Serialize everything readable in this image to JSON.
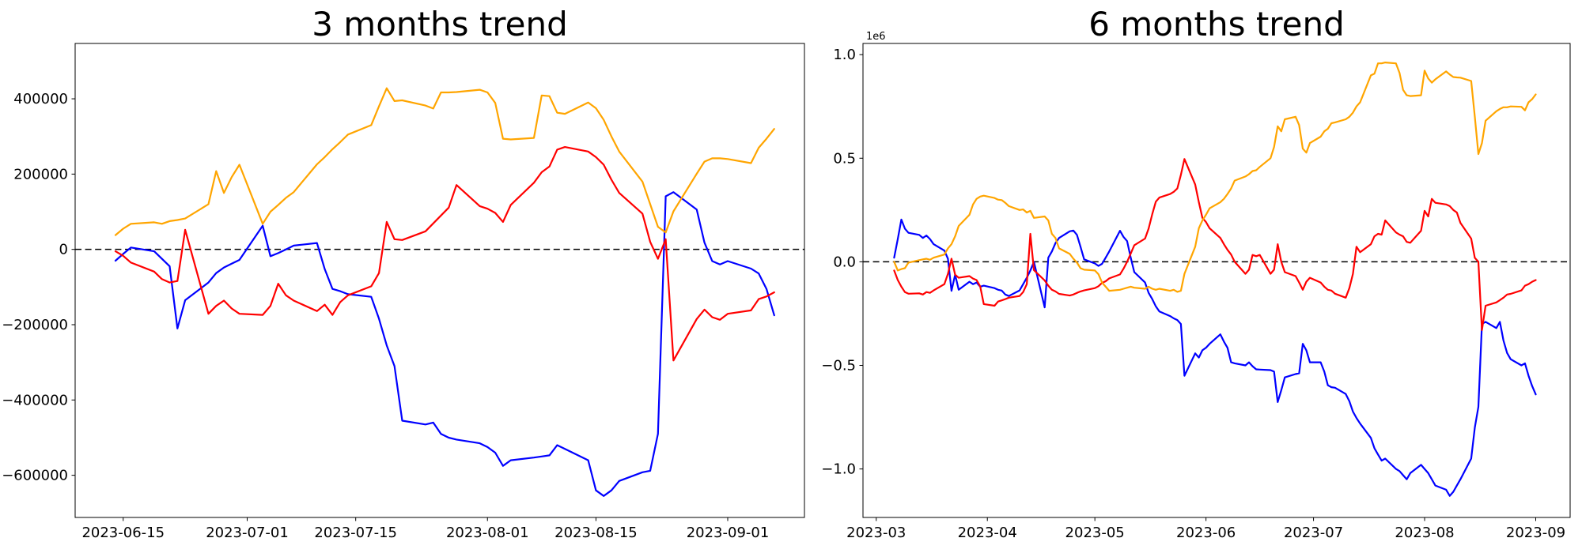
{
  "figure": {
    "background": "#ffffff",
    "axes_color": "#000000"
  },
  "chart_data": {
    "charts": [
      {
        "title": "3 months trend",
        "type": "line",
        "grid": false,
        "legend": null,
        "zero_line": {
          "value": 0,
          "style": "dashed",
          "color": "#000000"
        },
        "xlabel": "",
        "ylabel": "",
        "t_unit": "days since 2023-06-15 (weekday samples)",
        "xlim": [
          -6.2,
          87.9
        ],
        "ylim": [
          -712000,
          547000
        ],
        "x_ticks": {
          "pos": [
            0,
            16,
            30,
            47,
            61,
            78
          ],
          "labels": [
            "2023-06-15",
            "2023-07-01",
            "2023-07-15",
            "2023-08-01",
            "2023-08-15",
            "2023-09-01"
          ]
        },
        "y_ticks": {
          "pos": [
            400000,
            200000,
            0,
            -200000,
            -400000,
            -600000
          ],
          "labels": [
            "400000",
            "200000",
            "0",
            "−200000",
            "−400000",
            "−600000"
          ]
        },
        "offset_label": "",
        "t": [
          -1,
          0,
          1,
          4,
          5,
          6,
          7,
          8,
          11,
          12,
          13,
          14,
          15,
          18,
          19,
          20,
          21,
          22,
          25,
          26,
          27,
          28,
          29,
          32,
          33,
          34,
          35,
          36,
          39,
          40,
          41,
          42,
          43,
          46,
          47,
          48,
          49,
          50,
          53,
          54,
          55,
          56,
          57,
          60,
          61,
          62,
          63,
          64,
          67,
          68,
          69,
          70,
          71,
          74,
          75,
          76,
          77,
          78,
          81,
          82,
          83,
          84
        ],
        "series": [
          {
            "name": "blue-series",
            "color": "#0000ff",
            "values": [
              -30000,
              -12000,
              5000,
              -5000,
              -25000,
              -45000,
              -210000,
              -135000,
              -88000,
              -63000,
              -48000,
              -38000,
              -28000,
              63000,
              -18000,
              -10000,
              0,
              10000,
              17000,
              -52000,
              -105000,
              -111000,
              -119000,
              -126000,
              -184000,
              -255000,
              -310000,
              -455000,
              -465000,
              -460000,
              -490000,
              -500000,
              -505000,
              -515000,
              -525000,
              -540000,
              -575000,
              -560000,
              -553000,
              -550000,
              -547000,
              -520000,
              -530000,
              -560000,
              -640000,
              -655000,
              -640000,
              -615000,
              -592000,
              -588000,
              -490000,
              141000,
              152000,
              106000,
              18000,
              -31000,
              -40000,
              -31000,
              -51000,
              -64000,
              -105000,
              -175000
            ]
          },
          {
            "name": "red-series",
            "color": "#ff0000",
            "values": [
              -5000,
              -17000,
              -35000,
              -59000,
              -79000,
              -88000,
              -84000,
              52000,
              -171000,
              -150000,
              -136000,
              -157000,
              -171000,
              -174000,
              -150000,
              -91000,
              -122000,
              -136000,
              -164000,
              -147000,
              -174000,
              -140000,
              -122000,
              -98000,
              -63000,
              73000,
              27000,
              25000,
              48000,
              69000,
              90000,
              111000,
              171000,
              115000,
              108000,
              97000,
              73000,
              118000,
              177000,
              205000,
              220000,
              265000,
              272000,
              260000,
              245000,
              225000,
              185000,
              150000,
              95000,
              20000,
              -25000,
              27000,
              -295000,
              -185000,
              -160000,
              -180000,
              -187000,
              -171000,
              -162000,
              -132000,
              -125000,
              -114000
            ]
          },
          {
            "name": "orange-series",
            "color": "#ffa500",
            "values": [
              38000,
              55000,
              68000,
              72000,
              68000,
              75000,
              78000,
              82000,
              120000,
              208000,
              150000,
              192000,
              225000,
              68000,
              100000,
              118000,
              137000,
              152000,
              226000,
              245000,
              266000,
              285000,
              305000,
              330000,
              380000,
              428000,
              394000,
              396000,
              382000,
              374000,
              417000,
              417000,
              418000,
              424000,
              417000,
              389000,
              294000,
              292000,
              296000,
              409000,
              407000,
              363000,
              360000,
              390000,
              375000,
              344000,
              300000,
              260000,
              180000,
              120000,
              60000,
              45000,
              101000,
              201000,
              233000,
              242000,
              242000,
              240000,
              229000,
              270000,
              294000,
              320000
            ]
          }
        ]
      },
      {
        "title": "6 months trend",
        "type": "line",
        "grid": false,
        "legend": null,
        "zero_line": {
          "value": 0,
          "style": "dashed",
          "color": "#000000"
        },
        "xlabel": "",
        "ylabel": "",
        "t_unit": "days since 2023-03-01 (weekday samples)",
        "value_unit": "1e6",
        "xlim": [
          -3.7,
          193.6
        ],
        "ylim": [
          -1.234,
          1.054
        ],
        "x_ticks": {
          "pos": [
            0,
            31,
            61,
            92,
            122,
            153,
            184
          ],
          "labels": [
            "2023-03",
            "2023-04",
            "2023-05",
            "2023-06",
            "2023-07",
            "2023-08",
            "2023-09"
          ]
        },
        "y_ticks": {
          "pos": [
            1.0,
            0.5,
            0.0,
            -0.5,
            -1.0
          ],
          "labels": [
            "1.0",
            "0.5",
            "0.0",
            "−0.5",
            "−1.0"
          ]
        },
        "offset_label": "1e6",
        "t": [
          5,
          6,
          7,
          8,
          9,
          12,
          13,
          14,
          15,
          16,
          19,
          20,
          21,
          22,
          23,
          26,
          27,
          28,
          29,
          30,
          33,
          34,
          35,
          36,
          37,
          40,
          41,
          42,
          43,
          44,
          47,
          48,
          49,
          50,
          51,
          54,
          55,
          56,
          57,
          58,
          61,
          62,
          63,
          64,
          65,
          68,
          69,
          70,
          71,
          72,
          75,
          76,
          77,
          78,
          79,
          82,
          83,
          84,
          85,
          86,
          89,
          90,
          91,
          92,
          93,
          96,
          97,
          98,
          99,
          100,
          103,
          104,
          105,
          106,
          107,
          110,
          111,
          112,
          113,
          114,
          117,
          118,
          119,
          120,
          121,
          124,
          125,
          126,
          127,
          128,
          131,
          132,
          133,
          134,
          135,
          138,
          139,
          140,
          141,
          142,
          145,
          146,
          147,
          148,
          149,
          152,
          153,
          154,
          155,
          156,
          159,
          160,
          161,
          162,
          163,
          166,
          167,
          168,
          169,
          170,
          173,
          174,
          175,
          176,
          177,
          180,
          181,
          182,
          183,
          184
        ],
        "series": [
          {
            "name": "blue-series",
            "color": "#0000ff",
            "values": [
              0.02,
              0.11,
              0.204,
              0.16,
              0.14,
              0.13,
              0.115,
              0.127,
              0.11,
              0.085,
              0.054,
              0.015,
              -0.14,
              -0.062,
              -0.135,
              -0.096,
              -0.108,
              -0.1,
              -0.12,
              -0.115,
              -0.127,
              -0.135,
              -0.139,
              -0.158,
              -0.165,
              -0.138,
              -0.108,
              -0.077,
              -0.042,
              0.0,
              -0.22,
              0.02,
              0.05,
              0.09,
              0.115,
              0.147,
              0.151,
              0.13,
              0.073,
              0.012,
              -0.008,
              -0.02,
              -0.01,
              0.02,
              0.05,
              0.15,
              0.12,
              0.1,
              0.02,
              -0.05,
              -0.1,
              -0.15,
              -0.18,
              -0.215,
              -0.24,
              -0.262,
              -0.273,
              -0.281,
              -0.3,
              -0.55,
              -0.442,
              -0.462,
              -0.427,
              -0.415,
              -0.396,
              -0.35,
              -0.385,
              -0.415,
              -0.485,
              -0.49,
              -0.5,
              -0.485,
              -0.504,
              -0.519,
              -0.52,
              -0.523,
              -0.53,
              -0.677,
              -0.62,
              -0.558,
              -0.542,
              -0.538,
              -0.396,
              -0.427,
              -0.485,
              -0.485,
              -0.53,
              -0.596,
              -0.605,
              -0.608,
              -0.638,
              -0.673,
              -0.723,
              -0.754,
              -0.781,
              -0.85,
              -0.9,
              -0.93,
              -0.96,
              -0.95,
              -1.0,
              -1.01,
              -1.03,
              -1.05,
              -1.02,
              -0.98,
              -1.0,
              -1.02,
              -1.05,
              -1.08,
              -1.1,
              -1.13,
              -1.11,
              -1.08,
              -1.05,
              -0.95,
              -0.8,
              -0.7,
              -0.3,
              -0.29,
              -0.32,
              -0.29,
              -0.38,
              -0.44,
              -0.47,
              -0.5,
              -0.49,
              -0.55,
              -0.6,
              -0.64
            ]
          },
          {
            "name": "red-series",
            "color": "#ff0000",
            "values": [
              -0.042,
              -0.088,
              -0.12,
              -0.146,
              -0.154,
              -0.152,
              -0.158,
              -0.146,
              -0.15,
              -0.138,
              -0.108,
              -0.058,
              0.015,
              -0.062,
              -0.077,
              -0.069,
              -0.081,
              -0.088,
              -0.119,
              -0.204,
              -0.212,
              -0.192,
              -0.186,
              -0.18,
              -0.173,
              -0.165,
              -0.146,
              -0.108,
              0.135,
              -0.04,
              -0.09,
              -0.115,
              -0.135,
              -0.143,
              -0.155,
              -0.163,
              -0.158,
              -0.15,
              -0.143,
              -0.138,
              -0.127,
              -0.118,
              -0.102,
              -0.094,
              -0.08,
              -0.061,
              -0.033,
              0.0,
              0.04,
              0.08,
              0.112,
              0.16,
              0.23,
              0.29,
              0.31,
              0.327,
              0.338,
              0.354,
              0.42,
              0.496,
              0.373,
              0.288,
              0.212,
              0.192,
              0.162,
              0.115,
              0.085,
              0.058,
              0.035,
              0.0,
              -0.058,
              -0.038,
              0.033,
              0.027,
              0.033,
              -0.058,
              -0.038,
              0.085,
              0.0,
              -0.05,
              -0.069,
              -0.1,
              -0.135,
              -0.096,
              -0.077,
              -0.1,
              -0.12,
              -0.135,
              -0.139,
              -0.154,
              -0.173,
              -0.127,
              -0.058,
              0.073,
              0.046,
              0.085,
              0.123,
              0.135,
              0.131,
              0.2,
              0.142,
              0.131,
              0.123,
              0.096,
              0.092,
              0.15,
              0.246,
              0.219,
              0.304,
              0.285,
              0.277,
              0.269,
              0.25,
              0.238,
              0.188,
              0.112,
              0.019,
              0.0,
              -0.33,
              -0.212,
              -0.196,
              -0.185,
              -0.173,
              -0.158,
              -0.155,
              -0.138,
              -0.115,
              -0.108,
              -0.096,
              -0.088
            ]
          },
          {
            "name": "orange-series",
            "color": "#ffa500",
            "values": [
              0.0,
              -0.042,
              -0.035,
              -0.031,
              -0.004,
              0.008,
              0.012,
              0.015,
              0.01,
              0.02,
              0.035,
              0.065,
              0.085,
              0.123,
              0.173,
              0.227,
              0.277,
              0.304,
              0.315,
              0.319,
              0.308,
              0.3,
              0.298,
              0.285,
              0.269,
              0.25,
              0.253,
              0.238,
              0.246,
              0.212,
              0.219,
              0.2,
              0.135,
              0.115,
              0.065,
              0.038,
              0.015,
              -0.004,
              -0.031,
              -0.038,
              -0.042,
              -0.06,
              -0.1,
              -0.12,
              -0.14,
              -0.135,
              -0.13,
              -0.125,
              -0.12,
              -0.125,
              -0.13,
              -0.12,
              -0.13,
              -0.135,
              -0.13,
              -0.14,
              -0.135,
              -0.145,
              -0.14,
              -0.058,
              0.073,
              0.162,
              0.2,
              0.227,
              0.258,
              0.288,
              0.304,
              0.327,
              0.354,
              0.392,
              0.412,
              0.423,
              0.438,
              0.442,
              0.458,
              0.5,
              0.554,
              0.654,
              0.63,
              0.688,
              0.7,
              0.66,
              0.546,
              0.527,
              0.573,
              0.604,
              0.63,
              0.642,
              0.669,
              0.673,
              0.688,
              0.7,
              0.72,
              0.75,
              0.77,
              0.9,
              0.908,
              0.958,
              0.958,
              0.962,
              0.958,
              0.912,
              0.83,
              0.804,
              0.8,
              0.804,
              0.923,
              0.885,
              0.865,
              0.881,
              0.919,
              0.904,
              0.892,
              0.89,
              0.889,
              0.873,
              0.7,
              0.52,
              0.573,
              0.681,
              0.727,
              0.738,
              0.746,
              0.746,
              0.75,
              0.748,
              0.731,
              0.77,
              0.785,
              0.808
            ]
          }
        ]
      }
    ]
  }
}
